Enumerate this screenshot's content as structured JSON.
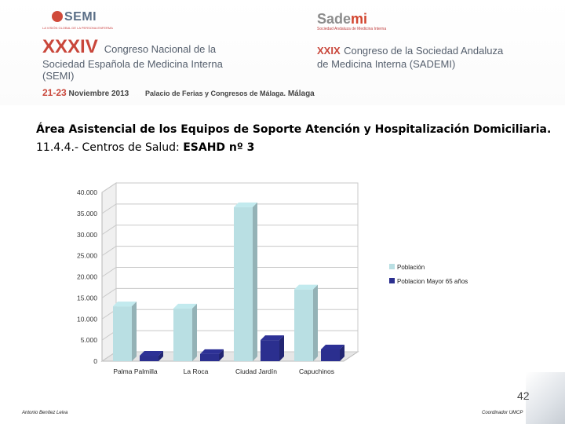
{
  "header": {
    "semi_logo": "SEMI",
    "semi_tagline": "LA VISIÓN GLOBAL DE LA PERSONA ENFERMA",
    "sademi_logo_a": "Sade",
    "sademi_logo_b": "mi",
    "sademi_sub": "Sociedad Andaluza de Medicina Interna",
    "semi_number": "XXXIV",
    "semi_title_1": "Congreso Nacional de la",
    "semi_title_2": "Sociedad Española de Medicina Interna",
    "semi_title_3": "(SEMI)",
    "sademi_number": "XXIX",
    "sademi_title_1": "Congreso de la Sociedad Andaluza",
    "sademi_title_2": "de Medicina Interna (SADEMI)",
    "days": "21-23",
    "month_year": "Noviembre 2013",
    "venue": "Palacio de Ferias y Congresos de Málaga.",
    "city": "Málaga"
  },
  "heading": {
    "line1": "Área Asistencial de los Equipos de Soporte Atención y Hospitalización Domiciliaria.",
    "line2_prefix": "11.4.4.- Centros de Salud: ",
    "line2_bold": "ESAHD nº 3"
  },
  "chart_data": {
    "type": "bar",
    "categories": [
      "Palma Palmilla",
      "La Roca",
      "Ciudad Jardín",
      "Capuchinos"
    ],
    "series": [
      {
        "name": "Población",
        "values": [
          13000,
          12500,
          36500,
          17000
        ],
        "color": "#b9dfe3"
      },
      {
        "name": "Poblacion Mayor 65 años",
        "values": [
          1300,
          1700,
          5000,
          2800
        ],
        "color": "#2b2f8f"
      }
    ],
    "ylim": [
      0,
      40000
    ],
    "yticks": [
      "0",
      "5.000",
      "10.000",
      "15.000",
      "20.000",
      "25.000",
      "30.000",
      "35.000",
      "40.000"
    ],
    "legend_position": "right",
    "grid": true,
    "style": "3d"
  },
  "footer": {
    "page": "42",
    "left": "Antonio Benítez Leiva",
    "right": "Coordinador UMCP"
  }
}
